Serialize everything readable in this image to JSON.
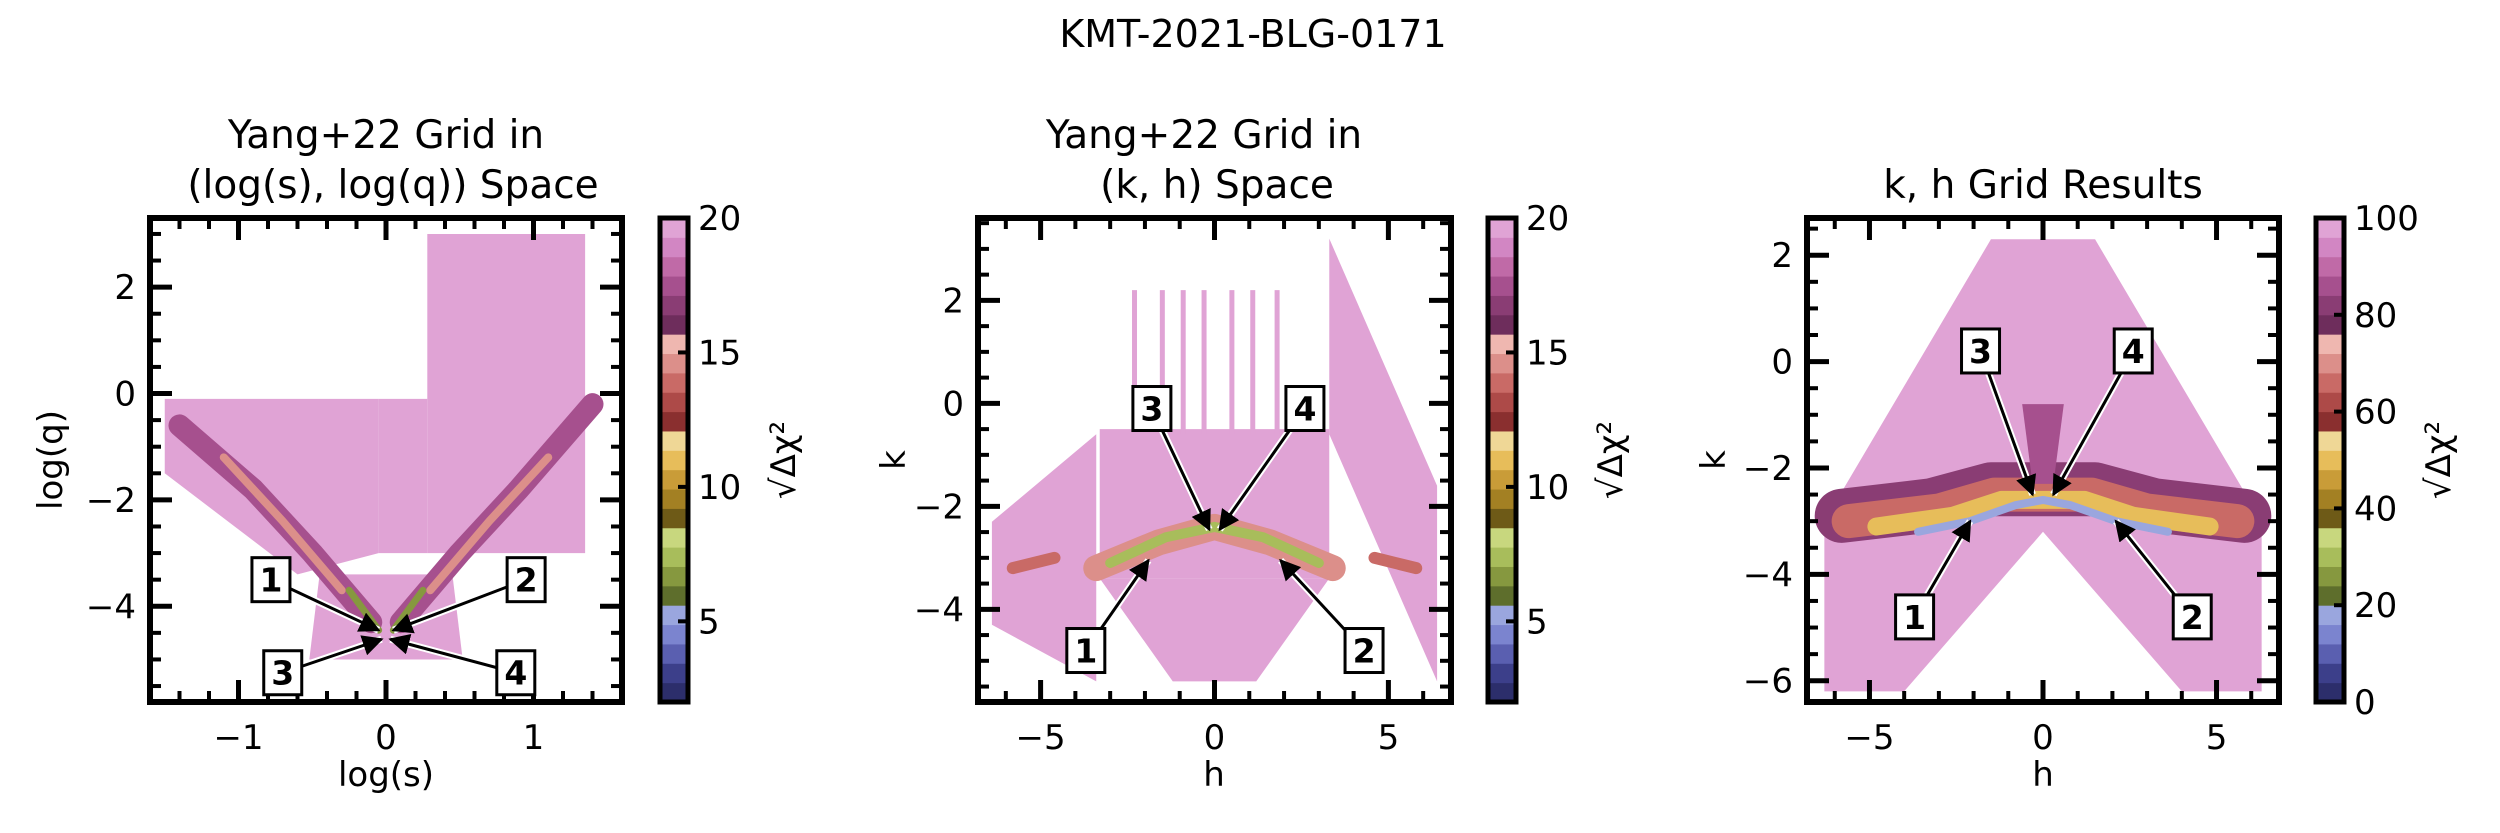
{
  "figure": {
    "suptitle": "KMT-2021-BLG-0171"
  },
  "colormap": [
    "#2c2e6b",
    "#3c3f8a",
    "#5a5fb0",
    "#7b84cf",
    "#9aa6de",
    "#5e6e2c",
    "#86983f",
    "#a8bd5b",
    "#c8d77e",
    "#6e5a17",
    "#a38023",
    "#c99c38",
    "#e7bd5a",
    "#efd796",
    "#8a2f2f",
    "#ad4a48",
    "#c96a66",
    "#dc8f8a",
    "#efb7b0",
    "#6e2d5c",
    "#8a3d74",
    "#a6508e",
    "#c06aa7",
    "#d286c3",
    "#e0a3d5"
  ],
  "chart_data": [
    {
      "type": "scatter",
      "title": "Yang+22 Grid in\n(log(s), log(q)) Space",
      "title_lines": [
        "Yang+22 Grid in",
        "(log(s), log(q)) Space"
      ],
      "xlabel": "log(s)",
      "ylabel": "log(q)",
      "xlim": [
        -1.6,
        1.6
      ],
      "ylim": [
        -5.8,
        3.3
      ],
      "xticks": [
        -1,
        0,
        1
      ],
      "yticks": [
        2,
        0,
        -2,
        -4
      ],
      "xtick_labels": [
        "−1",
        "0",
        "1"
      ],
      "ytick_labels": [
        "2",
        "0",
        "−2",
        "−4"
      ],
      "colorbar": {
        "label": "√Δχ²",
        "range": [
          2,
          20
        ],
        "ticks": [
          5,
          10,
          15,
          20
        ],
        "tick_labels": [
          "5",
          "10",
          "15",
          "20"
        ]
      },
      "annotations": [
        {
          "label": "1",
          "text_at": [
            -0.78,
            -3.5
          ],
          "arrow_to": [
            -0.05,
            -4.45
          ]
        },
        {
          "label": "2",
          "text_at": [
            0.95,
            -3.5
          ],
          "arrow_to": [
            0.05,
            -4.45
          ]
        },
        {
          "label": "3",
          "text_at": [
            -0.7,
            -5.25
          ],
          "arrow_to": [
            -0.03,
            -4.62
          ]
        },
        {
          "label": "4",
          "text_at": [
            0.88,
            -5.25
          ],
          "arrow_to": [
            0.03,
            -4.62
          ]
        }
      ]
    },
    {
      "type": "scatter",
      "title": "Yang+22 Grid in\n(k, h) Space",
      "title_lines": [
        "Yang+22 Grid in",
        "(k, h) Space"
      ],
      "xlabel": "h",
      "ylabel": "k",
      "xlim": [
        -6.8,
        6.8
      ],
      "ylim": [
        -5.8,
        3.6
      ],
      "xticks": [
        -5,
        0,
        5
      ],
      "yticks": [
        2,
        0,
        -2,
        -4
      ],
      "xtick_labels": [
        "−5",
        "0",
        "5"
      ],
      "ytick_labels": [
        "2",
        "0",
        "−2",
        "−4"
      ],
      "colorbar": {
        "label": "√Δχ²",
        "range": [
          2,
          20
        ],
        "ticks": [
          5,
          10,
          15,
          20
        ],
        "tick_labels": [
          "5",
          "10",
          "15",
          "20"
        ]
      },
      "annotations": [
        {
          "label": "1",
          "text_at": [
            -3.7,
            -4.8
          ],
          "arrow_to": [
            -1.9,
            -3.05
          ]
        },
        {
          "label": "2",
          "text_at": [
            4.3,
            -4.8
          ],
          "arrow_to": [
            1.9,
            -3.05
          ]
        },
        {
          "label": "3",
          "text_at": [
            -1.8,
            -0.1
          ],
          "arrow_to": [
            -0.15,
            -2.45
          ]
        },
        {
          "label": "4",
          "text_at": [
            2.6,
            -0.1
          ],
          "arrow_to": [
            0.15,
            -2.45
          ]
        }
      ]
    },
    {
      "type": "scatter",
      "title": "k, h Grid Results",
      "title_lines": [
        "k, h Grid Results"
      ],
      "xlabel": "h",
      "ylabel": "k",
      "xlim": [
        -6.8,
        6.8
      ],
      "ylim": [
        -6.4,
        2.7
      ],
      "xticks": [
        -5,
        0,
        5
      ],
      "yticks": [
        2,
        0,
        -2,
        -4,
        -6
      ],
      "xtick_labels": [
        "−5",
        "0",
        "5"
      ],
      "ytick_labels": [
        "2",
        "0",
        "−2",
        "−4",
        "−6"
      ],
      "colorbar": {
        "label": "√Δχ²",
        "range": [
          0,
          100
        ],
        "ticks": [
          0,
          20,
          40,
          60,
          80,
          100
        ],
        "tick_labels": [
          "0",
          "20",
          "40",
          "60",
          "80",
          "100"
        ]
      },
      "annotations": [
        {
          "label": "1",
          "text_at": [
            -3.7,
            -4.8
          ],
          "arrow_to": [
            -2.1,
            -3.0
          ]
        },
        {
          "label": "2",
          "text_at": [
            4.3,
            -4.8
          ],
          "arrow_to": [
            2.1,
            -3.0
          ]
        },
        {
          "label": "3",
          "text_at": [
            -1.8,
            0.2
          ],
          "arrow_to": [
            -0.3,
            -2.5
          ]
        },
        {
          "label": "4",
          "text_at": [
            2.6,
            0.2
          ],
          "arrow_to": [
            0.3,
            -2.5
          ]
        }
      ]
    }
  ]
}
